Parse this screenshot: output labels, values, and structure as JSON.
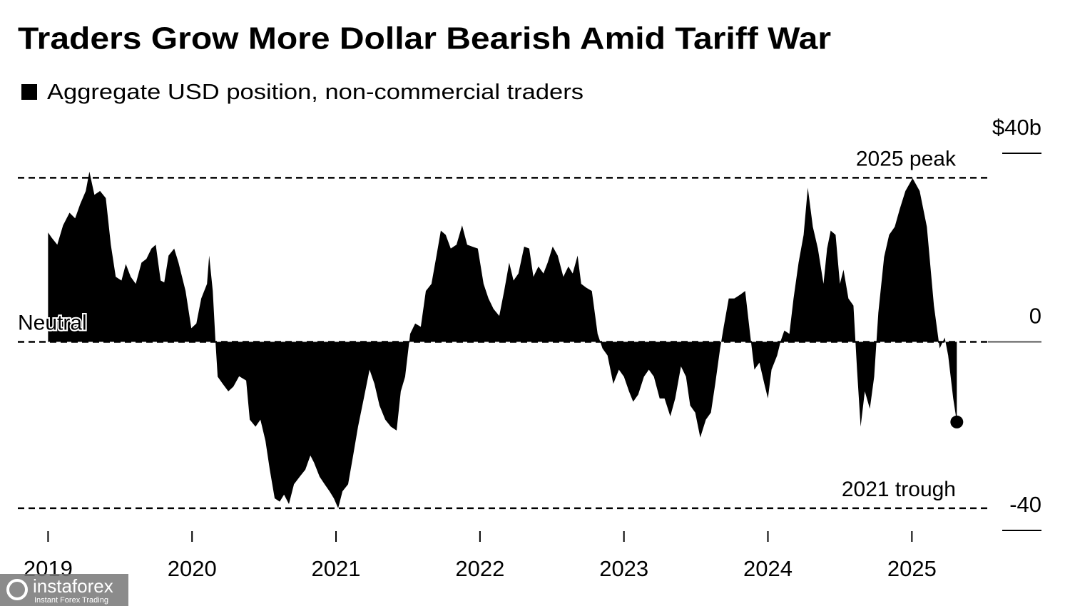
{
  "chart_data": {
    "type": "area",
    "title": "Traders Grow More Dollar Bearish Amid Tariff War",
    "legend": "Aggregate USD position, non-commercial traders",
    "color": "#000000",
    "x": [
      2019.0,
      2019.025,
      2019.064,
      2019.104,
      2019.149,
      2019.188,
      2019.223,
      2019.262,
      2019.287,
      2019.322,
      2019.361,
      2019.401,
      2019.436,
      2019.47,
      2019.51,
      2019.54,
      2019.574,
      2019.609,
      2019.649,
      2019.683,
      2019.718,
      2019.748,
      2019.782,
      2019.807,
      2019.837,
      2019.876,
      2019.906,
      2019.955,
      2019.995,
      2020.03,
      2020.064,
      2020.104,
      2020.119,
      2020.144,
      2020.163,
      2020.178,
      2020.213,
      2020.252,
      2020.287,
      2020.327,
      2020.376,
      2020.401,
      2020.441,
      2020.475,
      2020.51,
      2020.54,
      2020.574,
      2020.609,
      2020.639,
      2020.673,
      2020.708,
      2020.748,
      2020.787,
      2020.822,
      2020.847,
      2020.886,
      2020.921,
      2020.955,
      2020.985,
      2021.015,
      2021.045,
      2021.084,
      2021.119,
      2021.153,
      2021.193,
      2021.233,
      2021.267,
      2021.302,
      2021.342,
      2021.381,
      2021.421,
      2021.45,
      2021.48,
      2021.515,
      2021.55,
      2021.589,
      2021.624,
      2021.663,
      2021.698,
      2021.728,
      2021.762,
      2021.797,
      2021.837,
      2021.876,
      2021.911,
      2021.946,
      2021.985,
      2022.025,
      2022.059,
      2022.094,
      2022.134,
      2022.168,
      2022.203,
      2022.233,
      2022.267,
      2022.307,
      2022.342,
      2022.371,
      2022.406,
      2022.441,
      2022.47,
      2022.505,
      2022.54,
      2022.579,
      2022.614,
      2022.644,
      2022.678,
      2022.703,
      2022.738,
      2022.777,
      2022.817,
      2022.851,
      2022.886,
      2022.926,
      2022.965,
      2023.0,
      2023.035,
      2023.064,
      2023.099,
      2023.139,
      2023.173,
      2023.208,
      2023.248,
      2023.282,
      2023.322,
      2023.356,
      2023.396,
      2023.431,
      2023.46,
      2023.495,
      2023.53,
      2023.569,
      2023.604,
      2023.634,
      2023.668,
      2023.693,
      2023.728,
      2023.767,
      2023.807,
      2023.842,
      2023.876,
      2023.906,
      2023.941,
      2023.975,
      2024.0,
      2024.025,
      2024.064,
      2024.089,
      2024.114,
      2024.149,
      2024.178,
      2024.213,
      2024.248,
      2024.277,
      2024.312,
      2024.347,
      2024.386,
      2024.411,
      2024.436,
      2024.47,
      2024.5,
      2024.525,
      2024.559,
      2024.594,
      2024.619,
      2024.644,
      2024.673,
      2024.708,
      2024.738,
      2024.767,
      2024.807,
      2024.842,
      2024.881,
      2024.916,
      2024.955,
      2025.005,
      2025.054,
      2025.104,
      2025.153,
      2025.193,
      2025.228,
      2025.252,
      2025.287,
      2025.312
    ],
    "values": [
      23.2,
      22.1,
      20.6,
      24.7,
      27.4,
      26.2,
      29.2,
      32,
      36.1,
      31.2,
      32,
      30.5,
      20.6,
      13.8,
      13,
      16.5,
      13.8,
      12.3,
      16.8,
      17.6,
      19.8,
      20.6,
      13,
      12.6,
      18.3,
      19.8,
      16.8,
      10.8,
      2.9,
      3.9,
      9.2,
      12.3,
      18.3,
      10.8,
      0,
      -7.4,
      -8.9,
      -10.5,
      -9.5,
      -7.3,
      -8.2,
      -16.5,
      -18,
      -16.5,
      -21,
      -27.1,
      -33.2,
      -33.9,
      -32.4,
      -34.4,
      -30.2,
      -28.6,
      -27.1,
      -24.1,
      -25.6,
      -28.6,
      -30.2,
      -31.7,
      -33.2,
      -35.3,
      -31.7,
      -30.2,
      -24.1,
      -18,
      -12,
      -5.9,
      -8.9,
      -13.5,
      -16.5,
      -18,
      -18.8,
      -10.5,
      -7.4,
      1.7,
      3.9,
      3.2,
      10.8,
      12.3,
      18.3,
      23.6,
      22.7,
      19.8,
      20.6,
      24.7,
      20.6,
      20.2,
      19.8,
      12.3,
      9.2,
      7,
      5.5,
      10.8,
      16.8,
      13,
      14.5,
      20.2,
      19.8,
      13.8,
      16,
      14.5,
      16.8,
      20.2,
      18.3,
      13.8,
      16,
      14.5,
      18.3,
      12.3,
      11.5,
      10.8,
      1.7,
      -1.4,
      -2.9,
      -8.9,
      -5.9,
      -7.4,
      -10.5,
      -12.7,
      -11.2,
      -7.4,
      -5.9,
      -7.4,
      -12,
      -12,
      -15.8,
      -12,
      -5.2,
      -7.4,
      -13.5,
      -15,
      -20.3,
      -16.5,
      -15,
      -8.9,
      -1.4,
      3.2,
      9.2,
      9.2,
      10,
      10.8,
      1.7,
      -5.9,
      -4.4,
      -8.9,
      -12,
      -5.9,
      -2.9,
      0.2,
      2.4,
      1.7,
      9.2,
      16.8,
      22.7,
      32.7,
      24.4,
      19.8,
      12.3,
      19.8,
      23.6,
      22.7,
      12.3,
      15.3,
      9.2,
      7.7,
      -5.9,
      -18,
      -10.5,
      -14.2,
      -7.4,
      6.2,
      18,
      22.7,
      24.4,
      28.2,
      32,
      34.7,
      32,
      24.4,
      7.7,
      -1.4,
      0.9,
      -2.9,
      -12,
      -17
    ],
    "xlim": [
      2018.79,
      2025.9
    ],
    "xticks": [
      2019,
      2020,
      2021,
      2022,
      2023,
      2024,
      2025
    ],
    "ylim": [
      -40,
      40
    ],
    "yticks": [
      {
        "value": 40,
        "label": "$40b"
      },
      0,
      -40
    ],
    "annotations": [
      {
        "text": "2025 peak",
        "value": 34.8
      },
      {
        "text": "Neutral",
        "value": 0
      },
      {
        "text": "2021 trough",
        "value": -35.3
      }
    ]
  },
  "watermark": {
    "text": "instaforex",
    "subtext": "Instant Forex Trading"
  }
}
